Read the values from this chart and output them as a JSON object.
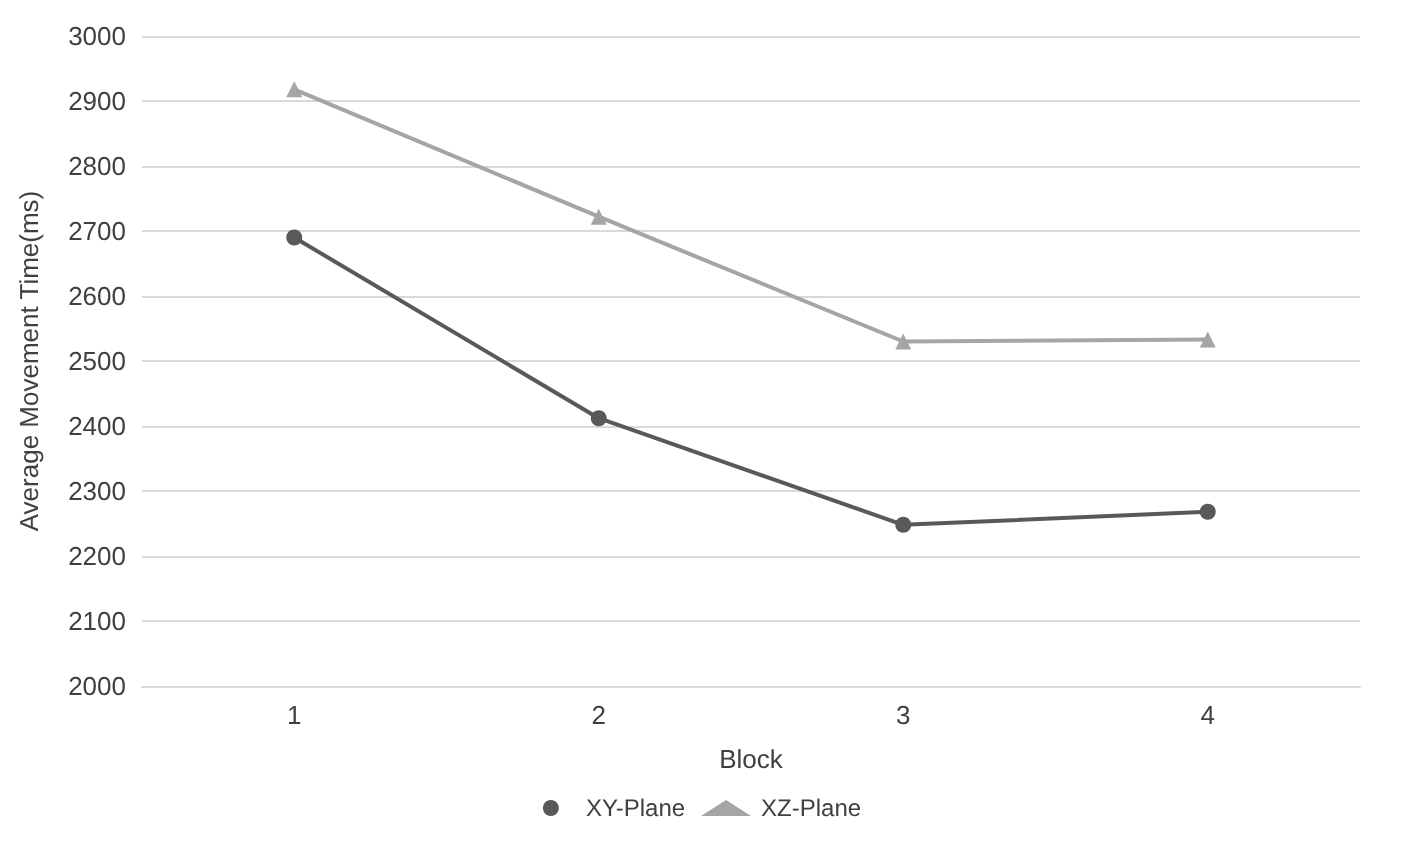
{
  "chart_data": {
    "type": "line",
    "xlabel": "Block",
    "ylabel": "Average Movement Time(ms)",
    "categories": [
      "1",
      "2",
      "3",
      "4"
    ],
    "series": [
      {
        "name": "XY-Plane",
        "color": "#595959",
        "marker": "circle",
        "values": [
          2690,
          2412,
          2248,
          2268
        ]
      },
      {
        "name": "XZ-Plane",
        "color": "#a5a5a5",
        "marker": "triangle",
        "values": [
          2918,
          2722,
          2530,
          2533
        ]
      }
    ],
    "ylim": [
      2000,
      3000
    ],
    "yticks": [
      2000,
      2100,
      2200,
      2300,
      2400,
      2500,
      2600,
      2700,
      2800,
      2900,
      3000
    ],
    "grid": "y",
    "legend": "bottom"
  }
}
